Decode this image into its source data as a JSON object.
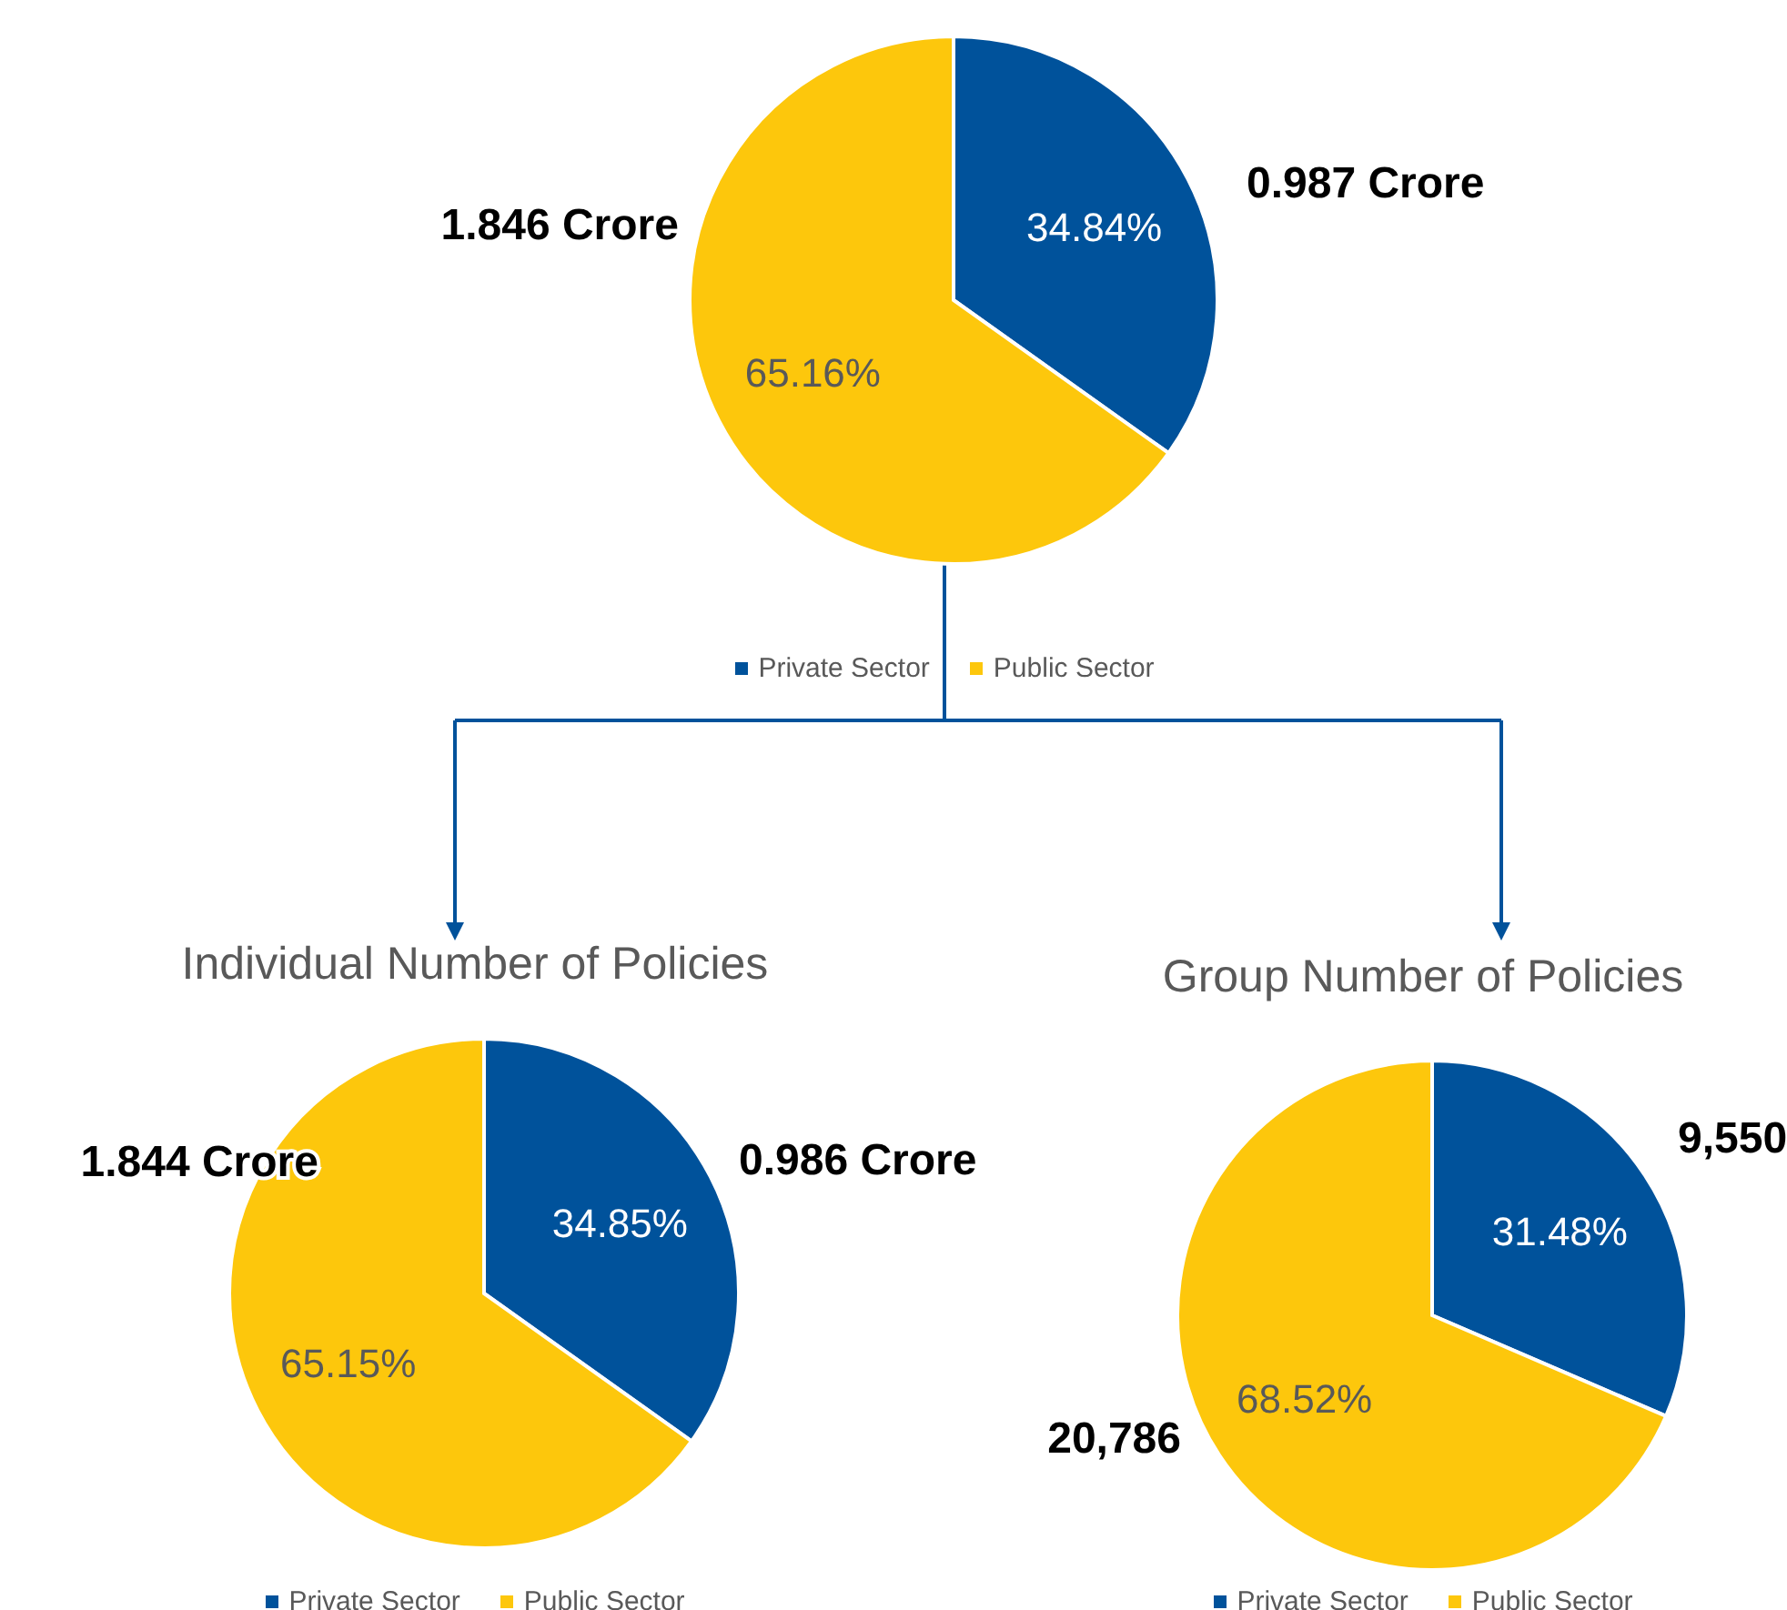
{
  "chart_data": [
    {
      "type": "pie",
      "categories": [
        "Private Sector",
        "Public Sector"
      ],
      "values": [
        34.84,
        65.16
      ],
      "colors": [
        "#00529b",
        "#fdc70c"
      ],
      "value_labels": [
        "34.84%",
        "65.16%"
      ],
      "annotations": [
        {
          "text": "0.987 Crore",
          "x": "Private Sector"
        },
        {
          "text": "1.846 Crore",
          "x": "Public Sector"
        }
      ],
      "legend": "bottom"
    },
    {
      "type": "pie",
      "title": "Individual Number of Policies",
      "categories": [
        "Private Sector",
        "Public Sector"
      ],
      "values": [
        34.85,
        65.15
      ],
      "colors": [
        "#00529b",
        "#fdc70c"
      ],
      "value_labels": [
        "34.85%",
        "65.15%"
      ],
      "annotations": [
        {
          "text": "0.986 Crore",
          "x": "Private Sector"
        },
        {
          "text": "1.844 Crore",
          "x": "Public Sector"
        }
      ],
      "legend": "bottom"
    },
    {
      "type": "pie",
      "title": "Group Number of Policies",
      "categories": [
        "Private Sector",
        "Public Sector"
      ],
      "values": [
        31.48,
        68.52
      ],
      "colors": [
        "#00529b",
        "#fdc70c"
      ],
      "value_labels": [
        "31.48%",
        "68.52%"
      ],
      "annotations": [
        {
          "text": "9,550",
          "x": "Private Sector"
        },
        {
          "text": "20,786",
          "x": "Public Sector"
        }
      ],
      "legend": "bottom"
    }
  ]
}
